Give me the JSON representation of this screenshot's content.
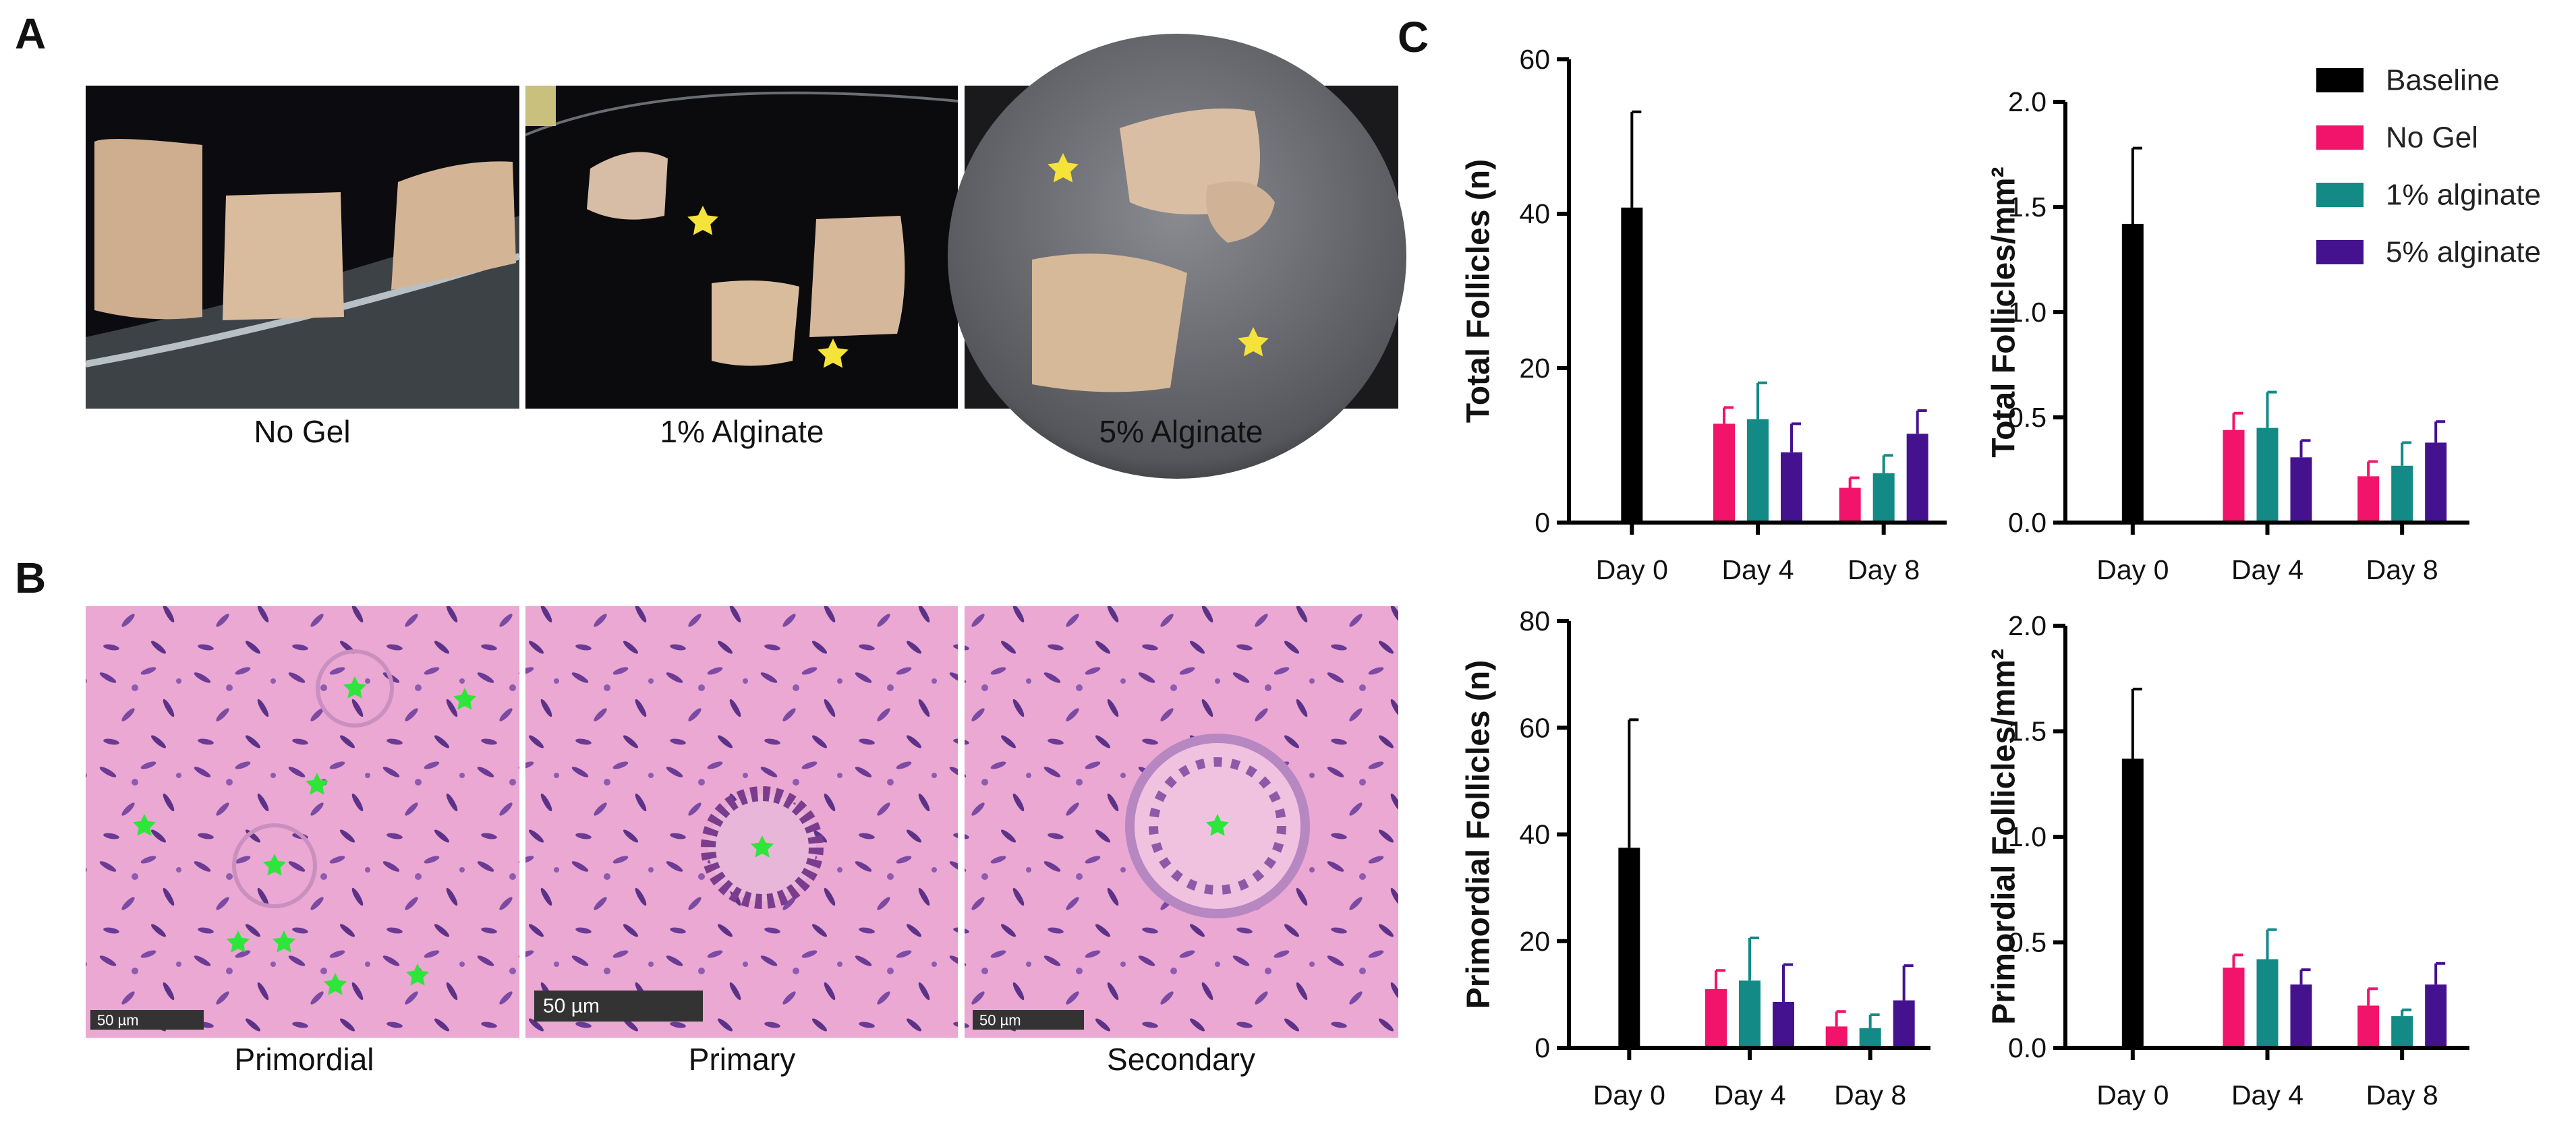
{
  "panel_labels": [
    "A",
    "B",
    "C"
  ],
  "panel_a": {
    "captions": [
      "No Gel",
      "1% Alginate",
      "5% Alginate"
    ]
  },
  "panel_b": {
    "captions": [
      "Primordial",
      "Primary",
      "Secondary"
    ],
    "scale_bars": [
      "50 µm",
      "50 µm",
      "50 µm"
    ]
  },
  "chart_data": [
    {
      "type": "bar",
      "ylabel": "Total Follicles (n)",
      "categories": [
        "Day 0",
        "Day 4",
        "Day 8"
      ],
      "ylim": [
        0,
        60
      ],
      "yticks": [
        0,
        20,
        40,
        60
      ],
      "series": [
        {
          "name": "Baseline",
          "color": "#000000",
          "values": [
            40.8,
            null,
            null
          ],
          "errors": [
            12.4,
            null,
            null
          ]
        },
        {
          "name": "No Gel",
          "color": "#f2136a",
          "values": [
            null,
            12.8,
            4.5
          ],
          "errors": [
            null,
            2.1,
            1.3
          ]
        },
        {
          "name": "1% alginate",
          "color": "#138a86",
          "values": [
            null,
            13.4,
            6.4
          ],
          "errors": [
            null,
            4.7,
            2.3
          ]
        },
        {
          "name": "5% alginate",
          "color": "#45128f",
          "values": [
            null,
            9.1,
            11.5
          ],
          "errors": [
            null,
            3.7,
            3.0
          ]
        }
      ]
    },
    {
      "type": "bar",
      "ylabel": "Total Follicles/mm²",
      "categories": [
        "Day 0",
        "Day 4",
        "Day 8"
      ],
      "ylim": [
        0,
        2
      ],
      "yticks": [
        {
          "value": 0,
          "label": "0.0"
        },
        0.5,
        {
          "value": 1,
          "label": "1.0"
        },
        1.5,
        {
          "value": 2,
          "label": "2.0"
        }
      ],
      "legend": "right",
      "series": [
        {
          "name": "Baseline",
          "color": "#000000",
          "values": [
            1.42,
            null,
            null
          ],
          "errors": [
            0.36,
            null,
            null
          ]
        },
        {
          "name": "No Gel",
          "color": "#f2136a",
          "values": [
            null,
            0.44,
            0.22
          ],
          "errors": [
            null,
            0.08,
            0.07
          ]
        },
        {
          "name": "1% alginate",
          "color": "#138a86",
          "values": [
            null,
            0.45,
            0.27
          ],
          "errors": [
            null,
            0.17,
            0.11
          ]
        },
        {
          "name": "5% alginate",
          "color": "#45128f",
          "values": [
            null,
            0.31,
            0.38
          ],
          "errors": [
            null,
            0.08,
            0.1
          ]
        }
      ]
    },
    {
      "type": "bar",
      "ylabel": "Primordial Follicles (n)",
      "categories": [
        "Day 0",
        "Day 4",
        "Day 8"
      ],
      "ylim": [
        0,
        80
      ],
      "yticks": [
        0,
        20,
        40,
        60,
        80
      ],
      "series": [
        {
          "name": "Baseline",
          "color": "#000000",
          "values": [
            37.5,
            null,
            null
          ],
          "errors": [
            24,
            null,
            null
          ]
        },
        {
          "name": "No Gel",
          "color": "#f2136a",
          "values": [
            null,
            11,
            4
          ],
          "errors": [
            null,
            3.5,
            2.8
          ]
        },
        {
          "name": "1% alginate",
          "color": "#138a86",
          "values": [
            null,
            12.6,
            3.7
          ],
          "errors": [
            null,
            8,
            2.5
          ]
        },
        {
          "name": "5% alginate",
          "color": "#45128f",
          "values": [
            null,
            8.6,
            8.9
          ],
          "errors": [
            null,
            7,
            6.5
          ]
        }
      ]
    },
    {
      "type": "bar",
      "ylabel": "Primordial Follicles/mm²",
      "categories": [
        "Day 0",
        "Day 4",
        "Day 8"
      ],
      "ylim": [
        0,
        2
      ],
      "yticks": [
        {
          "value": 0,
          "label": "0.0"
        },
        0.5,
        {
          "value": 1,
          "label": "1.0"
        },
        1.5,
        {
          "value": 2,
          "label": "2.0"
        }
      ],
      "series": [
        {
          "name": "Baseline",
          "color": "#000000",
          "values": [
            1.37,
            null,
            null
          ],
          "errors": [
            0.33,
            null,
            null
          ]
        },
        {
          "name": "No Gel",
          "color": "#f2136a",
          "values": [
            null,
            0.38,
            0.2
          ],
          "errors": [
            null,
            0.06,
            0.08
          ]
        },
        {
          "name": "1% alginate",
          "color": "#138a86",
          "values": [
            null,
            0.42,
            0.15
          ],
          "errors": [
            null,
            0.14,
            0.03
          ]
        },
        {
          "name": "5% alginate",
          "color": "#45128f",
          "values": [
            null,
            0.3,
            0.3
          ],
          "errors": [
            null,
            0.07,
            0.1
          ]
        }
      ]
    }
  ]
}
